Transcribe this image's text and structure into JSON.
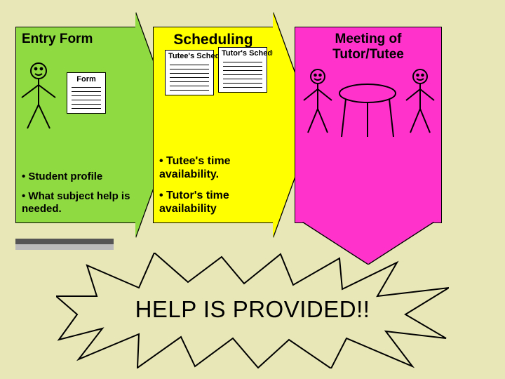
{
  "panel1": {
    "title": "Entry Form",
    "form_label": "Form",
    "bullet1": "• Student profile",
    "bullet2": "• What subject help is needed.",
    "bg": "#8fd941"
  },
  "panel2": {
    "title": "Scheduling",
    "sched_a": "Tutee's Schedule",
    "sched_b": "Tutor's Schedule",
    "bullet1": "• Tutee's time availability.",
    "bullet2": "• Tutor's time availability",
    "bg": "#ffff00"
  },
  "panel3": {
    "title": "Meeting of Tutor/Tutee",
    "bg": "#ff33cc"
  },
  "explosion_text": "HELP IS PROVIDED!!",
  "colors": {
    "page_bg": "#e7e7b8",
    "explosion_fill": "#e7e7b8",
    "explosion_stroke": "#000000"
  },
  "form_line_count": 6,
  "sched_line_count": 7
}
